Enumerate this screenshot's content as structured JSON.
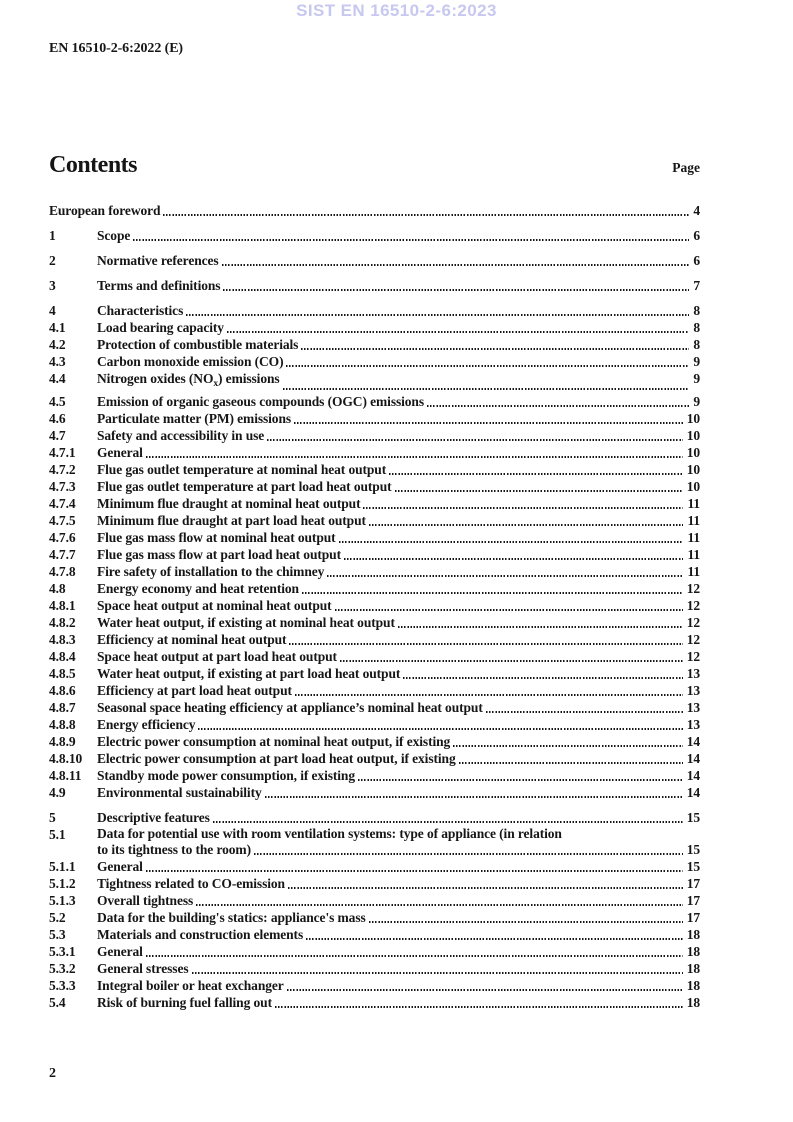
{
  "watermark": "SIST EN 16510-2-6:2023",
  "doc_ref": "EN 16510-2-6:2022 (E)",
  "contents": {
    "title": "Contents",
    "page_label": "Page"
  },
  "footer": {
    "page_number": "2"
  },
  "toc": {
    "entries": [
      {
        "num": "",
        "title": "European foreword",
        "page": "4"
      },
      {
        "num": "1",
        "title": "Scope",
        "page": "6"
      },
      {
        "num": "2",
        "title": "Normative references",
        "page": "6"
      },
      {
        "num": "3",
        "title": "Terms and definitions",
        "page": "7"
      },
      {
        "num": "4",
        "title": "Characteristics",
        "page": "8"
      },
      {
        "num": "4.1",
        "title": "Load bearing capacity",
        "page": "8"
      },
      {
        "num": "4.2",
        "title": "Protection of combustible materials",
        "page": "8"
      },
      {
        "num": "4.3",
        "title": "Carbon monoxide emission (CO)",
        "page": "9"
      },
      {
        "num": "4.4",
        "title_parts": [
          "Nitrogen oxides (NO",
          {
            "sub": "x"
          },
          ") emissions"
        ],
        "page": "9"
      },
      {
        "num": "4.5",
        "title": "Emission of organic gaseous compounds (OGC) emissions",
        "page": "9"
      },
      {
        "num": "4.6",
        "title": "Particulate matter (PM) emissions",
        "page": "10"
      },
      {
        "num": "4.7",
        "title": "Safety and accessibility in use",
        "page": "10"
      },
      {
        "num": "4.7.1",
        "title": "General",
        "page": "10"
      },
      {
        "num": "4.7.2",
        "title": "Flue gas outlet temperature at nominal heat output",
        "page": "10"
      },
      {
        "num": "4.7.3",
        "title": "Flue gas outlet temperature at part load heat output",
        "page": "10"
      },
      {
        "num": "4.7.4",
        "title": "Minimum flue draught at nominal heat output",
        "page": "11"
      },
      {
        "num": "4.7.5",
        "title": "Minimum flue draught at part load heat output",
        "page": "11"
      },
      {
        "num": "4.7.6",
        "title": "Flue gas mass flow at nominal heat output",
        "page": "11"
      },
      {
        "num": "4.7.7",
        "title": "Flue gas mass flow at part load heat output",
        "page": "11"
      },
      {
        "num": "4.7.8",
        "title": "Fire safety of installation to the chimney",
        "page": "11"
      },
      {
        "num": "4.8",
        "title": "Energy economy and heat retention",
        "page": "12"
      },
      {
        "num": "4.8.1",
        "title": "Space heat output at nominal heat output",
        "page": "12"
      },
      {
        "num": "4.8.2",
        "title": "Water heat output, if existing at nominal heat output",
        "page": "12"
      },
      {
        "num": "4.8.3",
        "title": "Efficiency at nominal heat output",
        "page": "12"
      },
      {
        "num": "4.8.4",
        "title": "Space heat output at part load heat output",
        "page": "12"
      },
      {
        "num": "4.8.5",
        "title": "Water heat output, if existing at part load heat output",
        "page": "13"
      },
      {
        "num": "4.8.6",
        "title": "Efficiency at part load heat output",
        "page": "13"
      },
      {
        "num": "4.8.7",
        "title": "Seasonal space heating efficiency at appliance’s nominal heat output",
        "page": "13"
      },
      {
        "num": "4.8.8",
        "title": "Energy efficiency",
        "page": "13"
      },
      {
        "num": "4.8.9",
        "title": "Electric power consumption at nominal heat output, if existing",
        "page": "14"
      },
      {
        "num": "4.8.10",
        "title": "Electric power consumption at part load heat output, if existing",
        "page": "14"
      },
      {
        "num": "4.8.11",
        "title": "Standby mode power consumption, if existing",
        "page": "14"
      },
      {
        "num": "4.9",
        "title": "Environmental sustainability",
        "page": "14"
      },
      {
        "num": "5",
        "title": "Descriptive features",
        "page": "15"
      },
      {
        "num": "5.1",
        "title": "Data for potential use with room ventilation systems: type of appliance (in relation",
        "title2": "to its tightness to the room)",
        "page": "15"
      },
      {
        "num": "5.1.1",
        "title": "General",
        "page": "15"
      },
      {
        "num": "5.1.2",
        "title": "Tightness related to CO-emission",
        "page": "17"
      },
      {
        "num": "5.1.3",
        "title": "Overall tightness",
        "page": "17"
      },
      {
        "num": "5.2",
        "title": "Data for the building's statics: appliance's mass",
        "page": "17"
      },
      {
        "num": "5.3",
        "title": "Materials and construction elements",
        "page": "18"
      },
      {
        "num": "5.3.1",
        "title": "General",
        "page": "18"
      },
      {
        "num": "5.3.2",
        "title": "General stresses",
        "page": "18"
      },
      {
        "num": "5.3.3",
        "title": "Integral boiler or heat exchanger",
        "page": "18"
      },
      {
        "num": "5.4",
        "title": "Risk of burning fuel falling out",
        "page": "18"
      }
    ]
  }
}
